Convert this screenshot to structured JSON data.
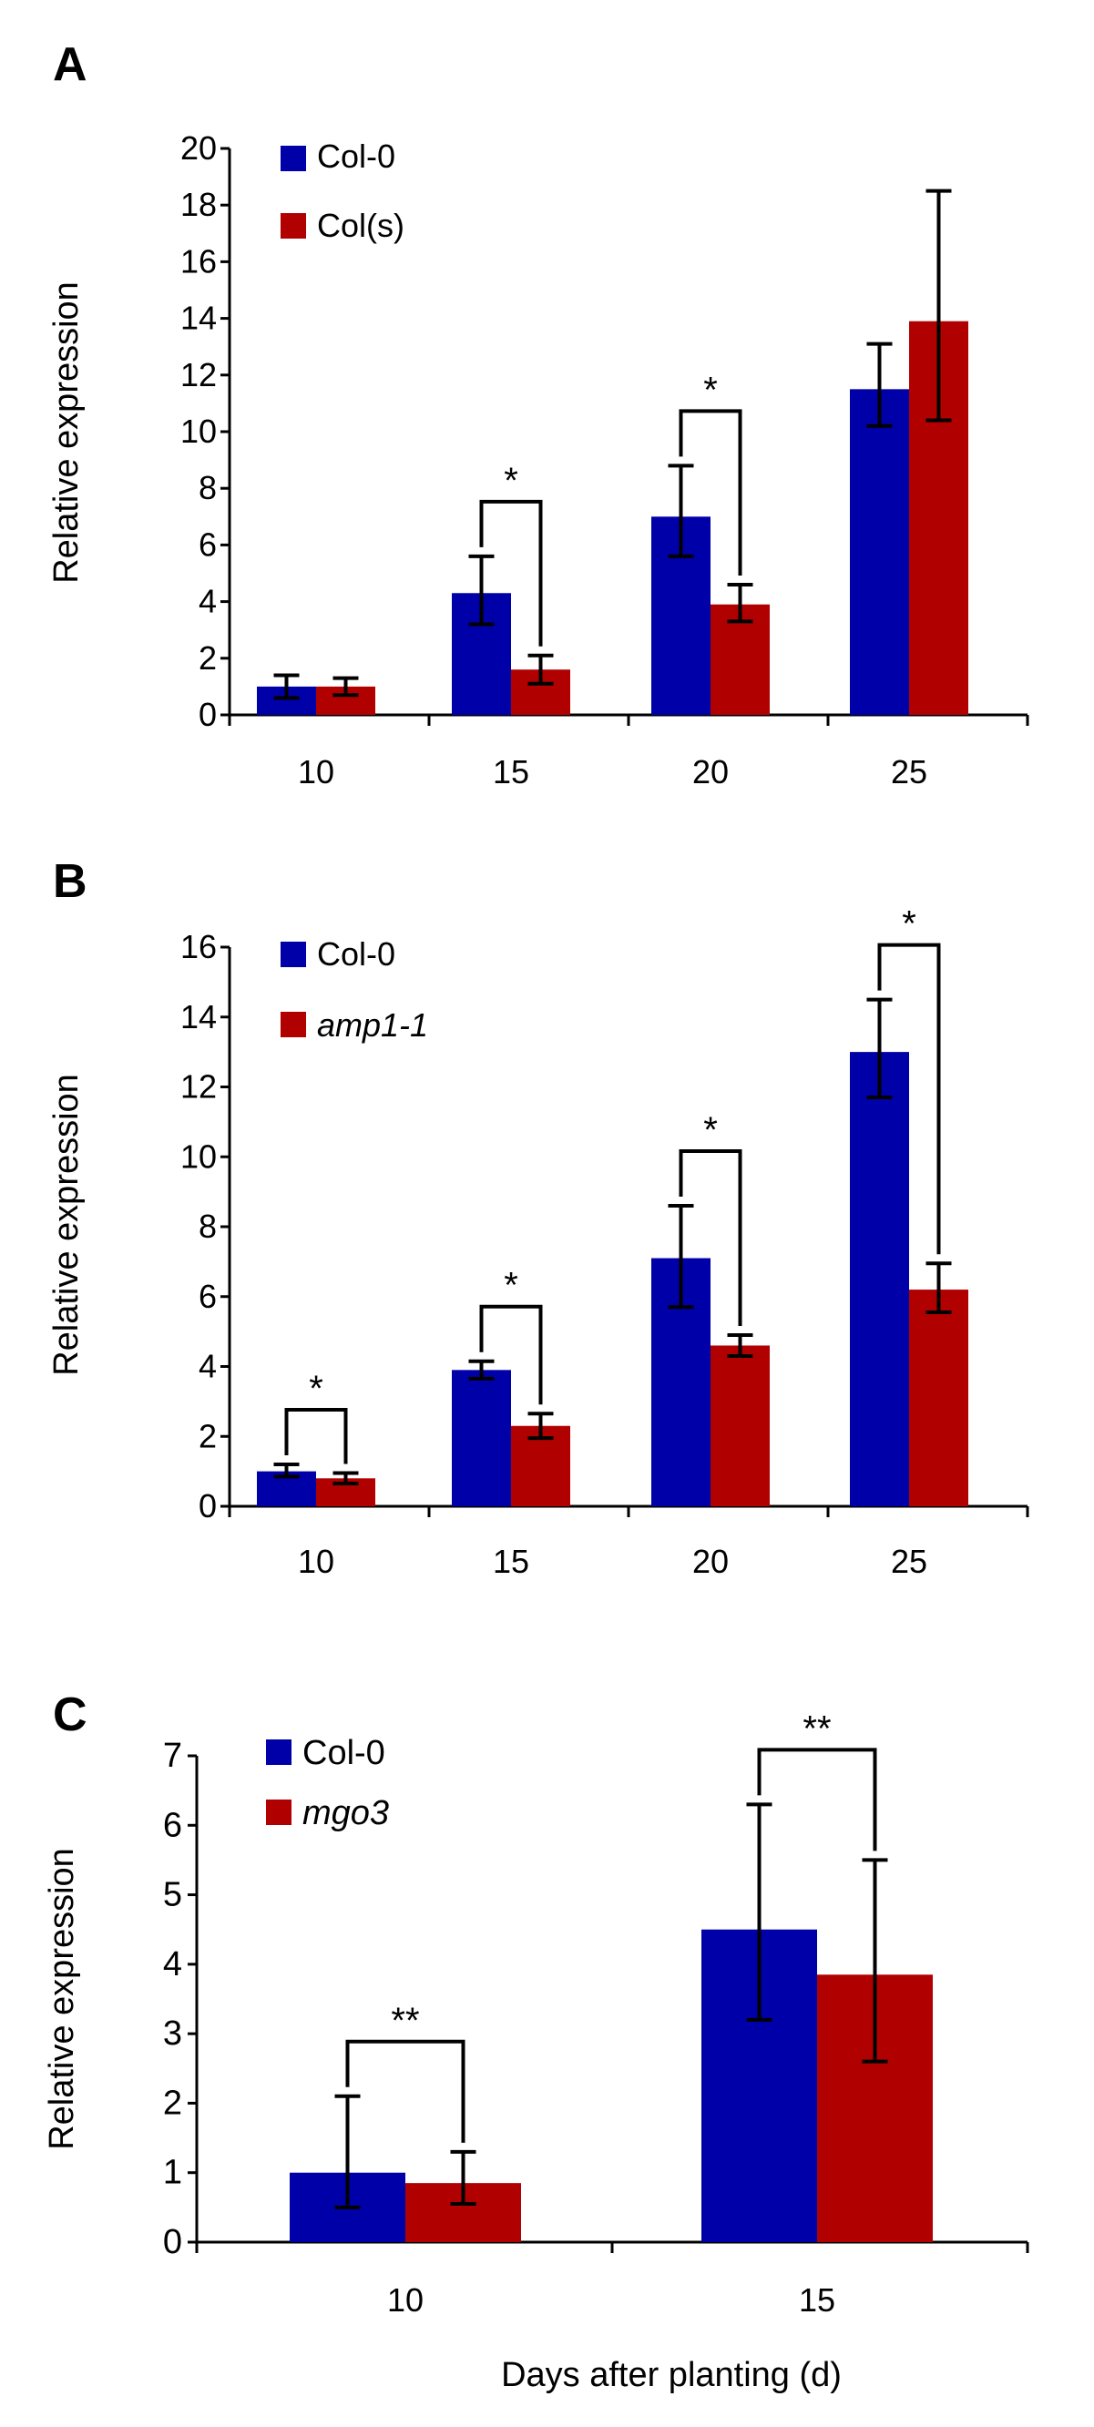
{
  "colors": {
    "series1": "#0000a8",
    "series2": "#b00000",
    "axis": "#000000"
  },
  "chart_data": [
    {
      "panel_label": "A",
      "type": "bar",
      "categories": [
        "10",
        "15",
        "20",
        "25"
      ],
      "ylabel": "Relative expression",
      "xlabel": "",
      "ylim": [
        0,
        20
      ],
      "yticks": [
        0,
        2,
        4,
        6,
        8,
        10,
        12,
        14,
        16,
        18,
        20
      ],
      "legend_position": "top-left",
      "series": [
        {
          "name": "Col-0",
          "italic": false,
          "values": [
            1.0,
            4.3,
            7.0,
            11.5
          ],
          "err_low": [
            0.4,
            1.1,
            1.4,
            1.3
          ],
          "err_high": [
            0.4,
            1.3,
            1.8,
            1.6
          ]
        },
        {
          "name": "Col(s)",
          "italic": false,
          "values": [
            1.0,
            1.6,
            3.9,
            13.9
          ],
          "err_low": [
            0.3,
            0.5,
            0.6,
            3.5
          ],
          "err_high": [
            0.3,
            0.5,
            0.7,
            4.6
          ]
        }
      ],
      "annotations": [
        {
          "category": 1,
          "text": "*"
        },
        {
          "category": 2,
          "text": "*"
        }
      ]
    },
    {
      "panel_label": "B",
      "type": "bar",
      "categories": [
        "10",
        "15",
        "20",
        "25"
      ],
      "ylabel": "Relative expression",
      "xlabel": "",
      "ylim": [
        0,
        16
      ],
      "yticks": [
        0,
        2,
        4,
        6,
        8,
        10,
        12,
        14,
        16
      ],
      "legend_position": "top-left",
      "series": [
        {
          "name": "Col-0",
          "italic": false,
          "values": [
            1.0,
            3.9,
            7.1,
            13.0
          ],
          "err_low": [
            0.15,
            0.25,
            1.4,
            1.3
          ],
          "err_high": [
            0.2,
            0.25,
            1.5,
            1.5
          ]
        },
        {
          "name": "amp1-1",
          "italic": true,
          "values": [
            0.8,
            2.3,
            4.6,
            6.2
          ],
          "err_low": [
            0.15,
            0.35,
            0.3,
            0.65
          ],
          "err_high": [
            0.15,
            0.35,
            0.3,
            0.75
          ]
        }
      ],
      "annotations": [
        {
          "category": 0,
          "text": "*"
        },
        {
          "category": 1,
          "text": "*"
        },
        {
          "category": 2,
          "text": "*"
        },
        {
          "category": 3,
          "text": "*"
        }
      ]
    },
    {
      "panel_label": "C",
      "type": "bar",
      "categories": [
        "10",
        "15"
      ],
      "ylabel": "Relative expression",
      "xlabel": "Days after planting (d)",
      "ylim": [
        0,
        7
      ],
      "yticks": [
        0,
        1,
        2,
        3,
        4,
        5,
        6,
        7
      ],
      "legend_position": "top-left",
      "series": [
        {
          "name": "Col-0",
          "italic": false,
          "values": [
            1.0,
            4.5
          ],
          "err_low": [
            0.5,
            1.3
          ],
          "err_high": [
            1.1,
            1.8
          ]
        },
        {
          "name": "mgo3",
          "italic": true,
          "values": [
            0.85,
            3.85
          ],
          "err_low": [
            0.3,
            1.25
          ],
          "err_high": [
            0.45,
            1.65
          ]
        }
      ],
      "annotations": [
        {
          "category": 0,
          "text": "**"
        },
        {
          "category": 1,
          "text": "**"
        }
      ]
    }
  ]
}
